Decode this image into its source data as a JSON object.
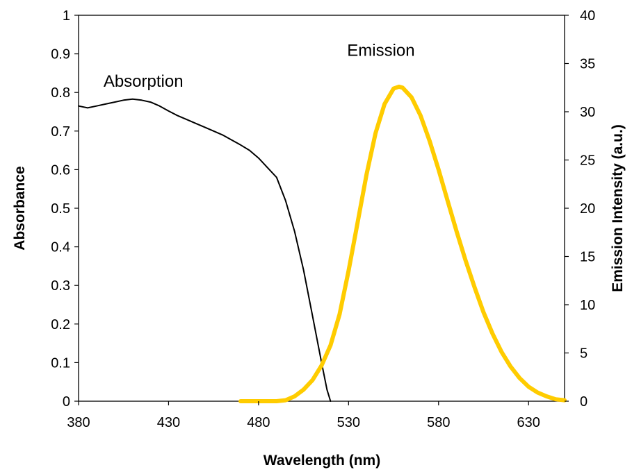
{
  "chart_data": {
    "type": "line",
    "xlabel": "Wavelength (nm)",
    "ylabel_left": "Absorbance",
    "ylabel_right": "Emission Intensity (a.u.)",
    "xlim": [
      380,
      650
    ],
    "ylim_left": [
      0,
      1
    ],
    "ylim_right": [
      0,
      40
    ],
    "x_ticks": [
      380,
      430,
      480,
      530,
      580,
      630
    ],
    "y_left_ticks": [
      0,
      0.1,
      0.2,
      0.3,
      0.4,
      0.5,
      0.6,
      0.7,
      0.8,
      0.9,
      1
    ],
    "y_right_ticks": [
      0,
      5,
      10,
      15,
      20,
      25,
      30,
      35,
      40
    ],
    "grid": false,
    "series": [
      {
        "name": "Absorption",
        "axis": "left",
        "color": "#000000",
        "x": [
          380,
          385,
          390,
          395,
          400,
          405,
          410,
          415,
          420,
          425,
          430,
          435,
          440,
          445,
          450,
          455,
          460,
          465,
          470,
          475,
          480,
          485,
          490,
          495,
          500,
          505,
          510,
          515,
          518,
          520
        ],
        "y": [
          0.765,
          0.76,
          0.765,
          0.77,
          0.775,
          0.78,
          0.783,
          0.78,
          0.775,
          0.765,
          0.752,
          0.74,
          0.73,
          0.72,
          0.71,
          0.7,
          0.69,
          0.677,
          0.664,
          0.65,
          0.63,
          0.605,
          0.58,
          0.52,
          0.44,
          0.34,
          0.22,
          0.1,
          0.03,
          0.0
        ]
      },
      {
        "name": "Emission",
        "axis": "right",
        "color": "#FFCC00",
        "x": [
          470,
          480,
          490,
          495,
          500,
          505,
          510,
          515,
          520,
          525,
          530,
          535,
          540,
          545,
          550,
          555,
          558,
          560,
          565,
          570,
          575,
          580,
          585,
          590,
          595,
          600,
          605,
          610,
          615,
          620,
          625,
          630,
          635,
          640,
          645,
          650
        ],
        "y": [
          0,
          0,
          0,
          0.1,
          0.5,
          1.2,
          2.2,
          3.7,
          5.8,
          9.0,
          13.5,
          18.5,
          23.5,
          27.8,
          30.8,
          32.4,
          32.6,
          32.5,
          31.5,
          29.6,
          27.0,
          24.0,
          20.8,
          17.6,
          14.6,
          11.8,
          9.2,
          7.0,
          5.1,
          3.6,
          2.4,
          1.5,
          0.9,
          0.5,
          0.2,
          0.1
        ]
      }
    ],
    "annotations": [
      {
        "text": "Absorption",
        "x": 416,
        "y": 0.815,
        "axis": "left"
      },
      {
        "text": "Emission",
        "x": 548,
        "y": 35.8,
        "axis": "right"
      }
    ]
  }
}
